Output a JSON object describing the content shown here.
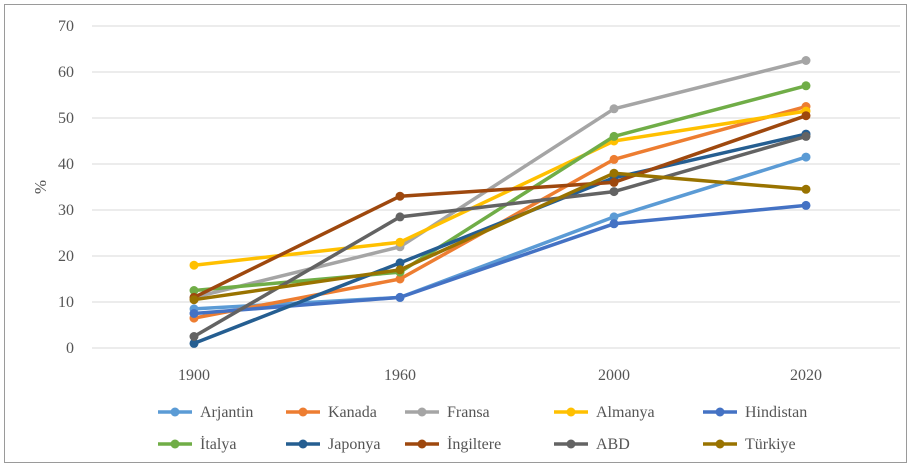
{
  "chart_data": {
    "type": "line",
    "title": "",
    "xlabel": "",
    "ylabel": "%",
    "ylim": [
      0,
      70
    ],
    "ytick_step": 10,
    "grid": "horizontal",
    "legend_position": "bottom",
    "categories": [
      "1900",
      "1960",
      "2000",
      "2020"
    ],
    "series": [
      {
        "name": "Arjantin",
        "color": "#5B9BD5",
        "values": [
          8.5,
          11.0,
          28.5,
          41.5
        ]
      },
      {
        "name": "Kanada",
        "color": "#ED7D31",
        "values": [
          6.5,
          15.0,
          41.0,
          52.5
        ]
      },
      {
        "name": "Fransa",
        "color": "#A5A5A5",
        "values": [
          11.0,
          22.0,
          52.0,
          62.5
        ]
      },
      {
        "name": "Almanya",
        "color": "#FFC000",
        "values": [
          18.0,
          23.0,
          45.0,
          51.5
        ]
      },
      {
        "name": "Hindistan",
        "color": "#4472C4",
        "values": [
          7.5,
          11.0,
          27.0,
          31.0
        ]
      },
      {
        "name": "İtalya",
        "color": "#70AD47",
        "values": [
          12.5,
          16.5,
          46.0,
          57.0
        ]
      },
      {
        "name": "Japonya",
        "color": "#255E91",
        "values": [
          1.0,
          18.5,
          37.0,
          46.5
        ]
      },
      {
        "name": "İngiltere",
        "color": "#9E480E",
        "values": [
          11.0,
          33.0,
          36.0,
          50.5
        ]
      },
      {
        "name": "ABD",
        "color": "#636363",
        "values": [
          2.5,
          28.5,
          34.0,
          46.0
        ]
      },
      {
        "name": "Türkiye",
        "color": "#997300",
        "values": [
          10.5,
          17.0,
          38.0,
          34.5
        ]
      }
    ]
  }
}
